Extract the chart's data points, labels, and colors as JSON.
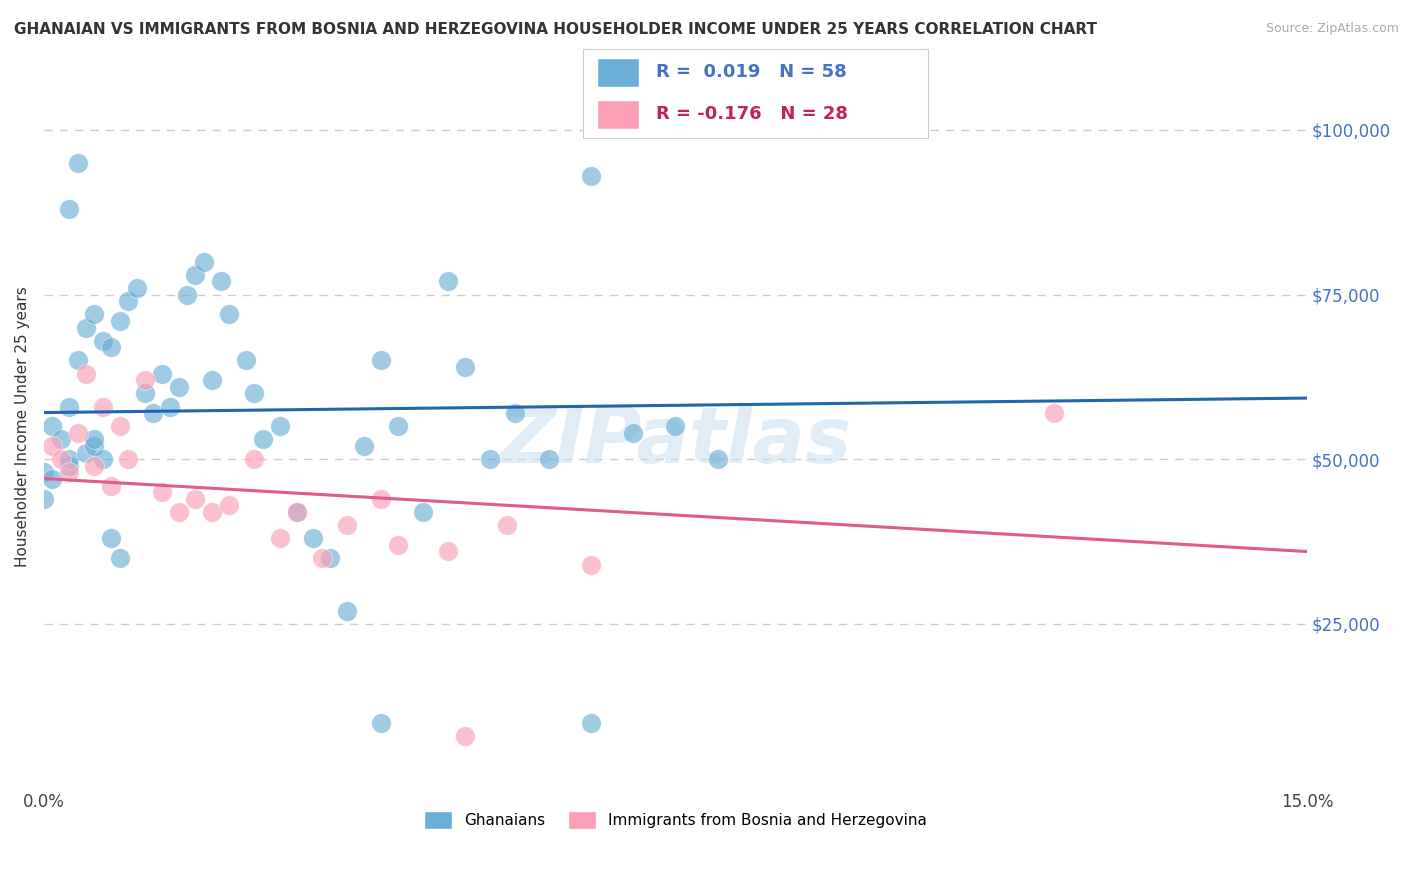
{
  "title": "GHANAIAN VS IMMIGRANTS FROM BOSNIA AND HERZEGOVINA HOUSEHOLDER INCOME UNDER 25 YEARS CORRELATION CHART",
  "source": "Source: ZipAtlas.com",
  "ylabel": "Householder Income Under 25 years",
  "xlim": [
    0.0,
    0.15
  ],
  "ylim": [
    0,
    110000
  ],
  "legend_r1": "R =  0.019",
  "legend_n1": "N = 58",
  "legend_r2": "R = -0.176",
  "legend_n2": "N = 28",
  "legend_label1": "Ghanaians",
  "legend_label2": "Immigrants from Bosnia and Herzegovina",
  "blue_color": "#6baed6",
  "pink_color": "#fa9fb5",
  "blue_line_color": "#2166ac",
  "pink_line_color": "#e05c8a",
  "R1": 0.019,
  "N1": 58,
  "R2": -0.176,
  "N2": 28,
  "blue_scatter_x": [
    0.004,
    0.003,
    0.001,
    0.002,
    0.003,
    0.004,
    0.005,
    0.006,
    0.007,
    0.008,
    0.009,
    0.01,
    0.011,
    0.012,
    0.013,
    0.014,
    0.015,
    0.016,
    0.017,
    0.018,
    0.019,
    0.02,
    0.021,
    0.022,
    0.024,
    0.025,
    0.026,
    0.028,
    0.03,
    0.032,
    0.034,
    0.036,
    0.038,
    0.04,
    0.042,
    0.045,
    0.048,
    0.05,
    0.053,
    0.056,
    0.06,
    0.065,
    0.07,
    0.075,
    0.08,
    0.0,
    0.0,
    0.001,
    0.003,
    0.003,
    0.005,
    0.006,
    0.006,
    0.007,
    0.008,
    0.009,
    0.04,
    0.065
  ],
  "blue_scatter_y": [
    95000,
    88000,
    55000,
    53000,
    58000,
    65000,
    70000,
    72000,
    68000,
    67000,
    71000,
    74000,
    76000,
    60000,
    57000,
    63000,
    58000,
    61000,
    75000,
    78000,
    80000,
    62000,
    77000,
    72000,
    65000,
    60000,
    53000,
    55000,
    42000,
    38000,
    35000,
    27000,
    52000,
    65000,
    55000,
    42000,
    77000,
    64000,
    50000,
    57000,
    50000,
    93000,
    54000,
    55000,
    50000,
    48000,
    44000,
    47000,
    49000,
    50000,
    51000,
    52000,
    53000,
    50000,
    38000,
    35000,
    10000,
    10000
  ],
  "pink_scatter_x": [
    0.001,
    0.002,
    0.003,
    0.004,
    0.005,
    0.006,
    0.007,
    0.008,
    0.009,
    0.01,
    0.012,
    0.014,
    0.016,
    0.018,
    0.02,
    0.022,
    0.025,
    0.028,
    0.03,
    0.033,
    0.036,
    0.042,
    0.048,
    0.055,
    0.065,
    0.12,
    0.04,
    0.05
  ],
  "pink_scatter_y": [
    52000,
    50000,
    48000,
    54000,
    63000,
    49000,
    58000,
    46000,
    55000,
    50000,
    62000,
    45000,
    42000,
    44000,
    42000,
    43000,
    50000,
    38000,
    42000,
    35000,
    40000,
    37000,
    36000,
    40000,
    34000,
    57000,
    44000,
    8000
  ],
  "watermark": "ZIPatlas",
  "background_color": "#ffffff",
  "grid_color": "#cccccc"
}
